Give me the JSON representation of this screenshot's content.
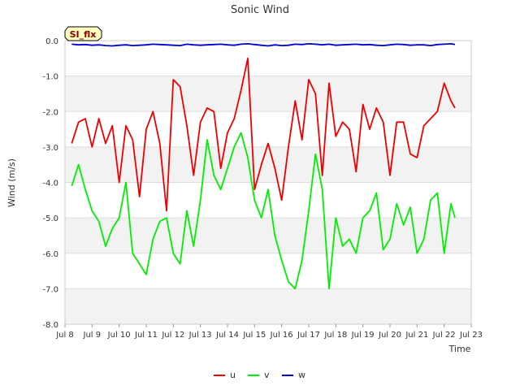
{
  "chart_data": {
    "type": "line",
    "title": "Sonic Wind",
    "xlabel": "Time",
    "ylabel": "Wind (m/s)",
    "badge": "SI_flx",
    "xlim": [
      8,
      23
    ],
    "ylim": [
      -8.0,
      0.0
    ],
    "grid": true,
    "legend_position": "bottom-center",
    "x_ticks": [
      {
        "value": 8,
        "label": "Jul 8"
      },
      {
        "value": 9,
        "label": "Jul 9"
      },
      {
        "value": 10,
        "label": "Jul 10"
      },
      {
        "value": 11,
        "label": "Jul 11"
      },
      {
        "value": 12,
        "label": "Jul 12"
      },
      {
        "value": 13,
        "label": "Jul 13"
      },
      {
        "value": 14,
        "label": "Jul 14"
      },
      {
        "value": 15,
        "label": "Jul 15"
      },
      {
        "value": 16,
        "label": "Jul 16"
      },
      {
        "value": 17,
        "label": "Jul 17"
      },
      {
        "value": 18,
        "label": "Jul 18"
      },
      {
        "value": 19,
        "label": "Jul 19"
      },
      {
        "value": 20,
        "label": "Jul 20"
      },
      {
        "value": 21,
        "label": "Jul 21"
      },
      {
        "value": 22,
        "label": "Jul 22"
      },
      {
        "value": 23,
        "label": "Jul 23"
      }
    ],
    "y_ticks": [
      {
        "value": 0.0,
        "label": "0.0"
      },
      {
        "value": -1.0,
        "label": "-1.0"
      },
      {
        "value": -2.0,
        "label": "-2.0"
      },
      {
        "value": -3.0,
        "label": "-3.0"
      },
      {
        "value": -4.0,
        "label": "-4.0"
      },
      {
        "value": -5.0,
        "label": "-5.0"
      },
      {
        "value": -6.0,
        "label": "-6.0"
      },
      {
        "value": -7.0,
        "label": "-7.0"
      },
      {
        "value": -8.0,
        "label": "-8.0"
      }
    ],
    "series": [
      {
        "name": "u",
        "color": "#ee0000",
        "x": [
          8.25,
          8.5,
          8.75,
          9.0,
          9.25,
          9.5,
          9.75,
          10.0,
          10.25,
          10.5,
          10.75,
          11.0,
          11.25,
          11.5,
          11.75,
          12.0,
          12.25,
          12.5,
          12.75,
          13.0,
          13.25,
          13.5,
          13.75,
          14.0,
          14.25,
          14.5,
          14.75,
          15.0,
          15.25,
          15.5,
          15.75,
          16.0,
          16.25,
          16.5,
          16.75,
          17.0,
          17.25,
          17.5,
          17.75,
          18.0,
          18.25,
          18.5,
          18.75,
          19.0,
          19.25,
          19.5,
          19.75,
          20.0,
          20.25,
          20.5,
          20.75,
          21.0,
          21.25,
          21.5,
          21.75,
          22.0,
          22.25,
          22.4
        ],
        "values": [
          -2.9,
          -2.3,
          -2.2,
          -3.0,
          -2.2,
          -2.9,
          -2.4,
          -4.0,
          -2.4,
          -2.8,
          -4.4,
          -2.5,
          -2.0,
          -2.9,
          -4.8,
          -1.1,
          -1.3,
          -2.4,
          -3.8,
          -2.3,
          -1.9,
          -2.0,
          -3.6,
          -2.6,
          -2.2,
          -1.4,
          -0.5,
          -4.2,
          -3.5,
          -2.9,
          -3.6,
          -4.5,
          -3.0,
          -1.7,
          -2.8,
          -1.1,
          -1.5,
          -3.8,
          -1.2,
          -2.7,
          -2.3,
          -2.5,
          -3.7,
          -1.8,
          -2.5,
          -1.9,
          -2.3,
          -3.8,
          -2.3,
          -2.3,
          -3.2,
          -3.3,
          -2.4,
          -2.2,
          -2.0,
          -1.2,
          -1.7,
          -1.9
        ]
      },
      {
        "name": "v",
        "color": "#00ee00",
        "x": [
          8.25,
          8.5,
          8.75,
          9.0,
          9.25,
          9.5,
          9.75,
          10.0,
          10.25,
          10.5,
          10.75,
          11.0,
          11.25,
          11.5,
          11.75,
          12.0,
          12.25,
          12.5,
          12.75,
          13.0,
          13.25,
          13.5,
          13.75,
          14.0,
          14.25,
          14.5,
          14.75,
          15.0,
          15.25,
          15.5,
          15.75,
          16.0,
          16.25,
          16.5,
          16.75,
          17.0,
          17.25,
          17.5,
          17.75,
          18.0,
          18.25,
          18.5,
          18.75,
          19.0,
          19.25,
          19.5,
          19.75,
          20.0,
          20.25,
          20.5,
          20.75,
          21.0,
          21.25,
          21.5,
          21.75,
          22.0,
          22.25,
          22.4
        ],
        "values": [
          -4.1,
          -3.5,
          -4.2,
          -4.8,
          -5.1,
          -5.8,
          -5.3,
          -5.0,
          -4.0,
          -6.0,
          -6.3,
          -6.6,
          -5.6,
          -5.1,
          -5.0,
          -6.0,
          -6.3,
          -4.8,
          -5.8,
          -4.5,
          -2.8,
          -3.8,
          -4.2,
          -3.6,
          -3.0,
          -2.6,
          -3.3,
          -4.5,
          -5.0,
          -4.2,
          -5.5,
          -6.2,
          -6.8,
          -7.0,
          -6.2,
          -4.8,
          -3.2,
          -4.2,
          -7.0,
          -5.0,
          -5.8,
          -5.6,
          -6.0,
          -5.0,
          -4.8,
          -4.3,
          -5.9,
          -5.6,
          -4.6,
          -5.2,
          -4.7,
          -6.0,
          -5.6,
          -4.5,
          -4.3,
          -6.0,
          -4.6,
          -5.0
        ]
      },
      {
        "name": "w",
        "color": "#0000cc",
        "x": [
          8.25,
          8.5,
          8.75,
          9.0,
          9.25,
          9.5,
          9.75,
          10.0,
          10.25,
          10.5,
          10.75,
          11.0,
          11.25,
          11.5,
          11.75,
          12.0,
          12.25,
          12.5,
          12.75,
          13.0,
          13.25,
          13.5,
          13.75,
          14.0,
          14.25,
          14.5,
          14.75,
          15.0,
          15.25,
          15.5,
          15.75,
          16.0,
          16.25,
          16.5,
          16.75,
          17.0,
          17.25,
          17.5,
          17.75,
          18.0,
          18.25,
          18.5,
          18.75,
          19.0,
          19.25,
          19.5,
          19.75,
          20.0,
          20.25,
          20.5,
          20.75,
          21.0,
          21.25,
          21.5,
          21.75,
          22.0,
          22.25,
          22.4
        ],
        "values": [
          -0.1,
          -0.12,
          -0.11,
          -0.13,
          -0.12,
          -0.14,
          -0.15,
          -0.13,
          -0.12,
          -0.14,
          -0.13,
          -0.12,
          -0.1,
          -0.11,
          -0.12,
          -0.13,
          -0.14,
          -0.1,
          -0.12,
          -0.13,
          -0.12,
          -0.11,
          -0.1,
          -0.12,
          -0.13,
          -0.1,
          -0.09,
          -0.11,
          -0.13,
          -0.15,
          -0.12,
          -0.14,
          -0.13,
          -0.1,
          -0.11,
          -0.09,
          -0.1,
          -0.12,
          -0.1,
          -0.13,
          -0.12,
          -0.11,
          -0.1,
          -0.12,
          -0.11,
          -0.13,
          -0.14,
          -0.12,
          -0.1,
          -0.11,
          -0.13,
          -0.12,
          -0.12,
          -0.14,
          -0.11,
          -0.1,
          -0.09,
          -0.11
        ]
      }
    ]
  }
}
